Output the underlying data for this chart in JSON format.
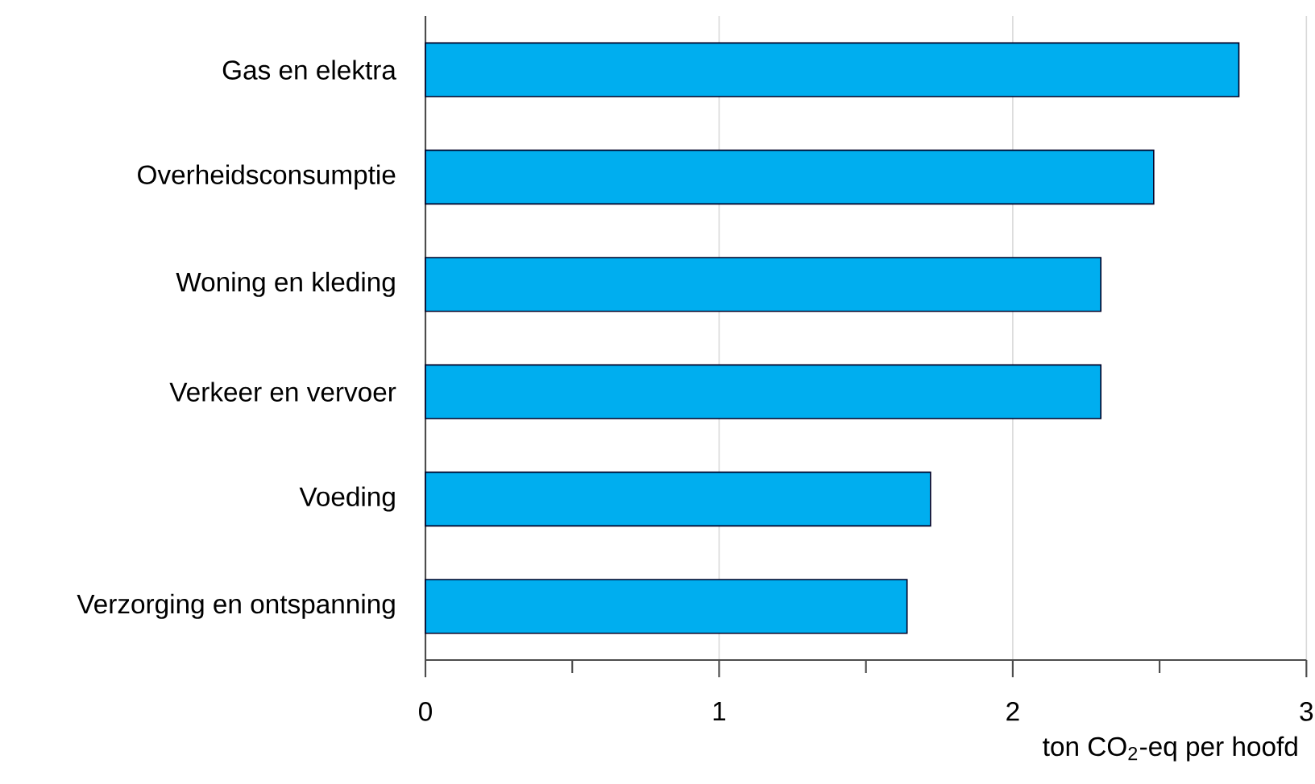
{
  "chart_data": {
    "type": "bar",
    "orientation": "horizontal",
    "categories": [
      "Gas en elektra",
      "Overheidsconsumptie",
      "Woning en kleding",
      "Verkeer en vervoer",
      "Voeding",
      "Verzorging en ontspanning"
    ],
    "values": [
      2.77,
      2.48,
      2.3,
      2.3,
      1.72,
      1.64
    ],
    "color": "#00aeef",
    "xlabel": "ton CO$_{2}$-eq per hoofd",
    "xlim": [
      0,
      3
    ],
    "xticks": [
      0,
      {
        "value": 0.5,
        "label": null
      },
      1,
      {
        "value": 1.5,
        "label": null
      },
      2,
      {
        "value": 2.5,
        "label": null
      },
      3
    ],
    "grid": "x"
  }
}
